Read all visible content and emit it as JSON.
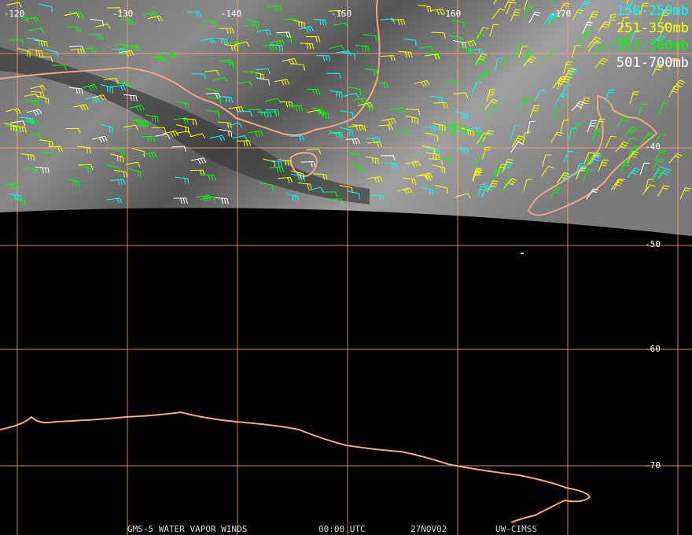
{
  "map": {
    "longitude_labels": [
      "-120",
      "-130",
      "-140",
      "-150",
      "-160",
      "-170"
    ],
    "latitude_labels": [
      "-40",
      "-50",
      "-60",
      "-70"
    ],
    "legend": [
      {
        "label": "150-250mb",
        "color": "#00ffff"
      },
      {
        "label": "251-350mb",
        "color": "#ffff00"
      },
      {
        "label": "351-500mb",
        "color": "#00ff00"
      },
      {
        "label": "501-700mb",
        "color": "#ffffff"
      }
    ],
    "footer": [
      "GMS-5 WATER VAPOR WINDS",
      "00:00 UTC",
      "27NOV02",
      "UW-CIMSS"
    ]
  }
}
